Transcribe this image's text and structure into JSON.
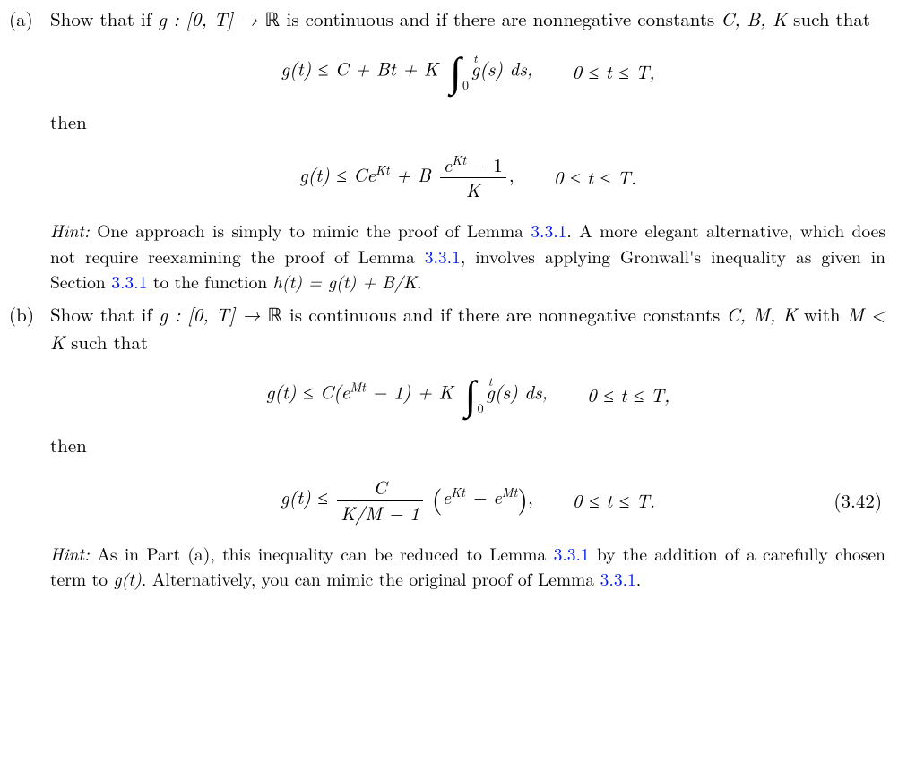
{
  "ref_color": "#0018f3",
  "items": {
    "a": {
      "label": "(a)",
      "lead": "Show that if ",
      "func": "g : [0, T] → ",
      "real": "ℝ",
      "cont": " is continuous and if there are nonnegative constants ",
      "consts": "C, B, K",
      "such": " such that",
      "eq1_lhs": "g(t) ≤ C + Bt + K",
      "eq1_int_hi": "t",
      "eq1_int_lo": "0",
      "eq1_integrand": "g(s) ds,",
      "eq1_range": "0 ≤ t ≤ T,",
      "then": "then",
      "eq2_lhs_a": "g(t) ≤ Ce",
      "eq2_lhs_exp": "Kt",
      "eq2_plusB": " + B",
      "eq2_frac_nu_a": "e",
      "eq2_frac_nu_exp": "Kt",
      "eq2_frac_nu_b": " − 1",
      "eq2_frac_de": "K",
      "eq2_range": "0 ≤ t ≤ T.",
      "hint_lead": "Hint:",
      "hint_text1": "  One approach is simply to mimic the proof of Lemma ",
      "hint_ref1": "3.3.1",
      "hint_text2": ".  A more elegant alternative, which does not require reexamining the proof of Lemma ",
      "hint_ref2": "3.3.1",
      "hint_text3": ", involves applying Gronwall's inequality as given in Section ",
      "hint_ref3": "3.3.1",
      "hint_text4": " to the function ",
      "hint_func": "h(t) = g(t) + B/K",
      "hint_text5": "."
    },
    "b": {
      "label": "(b)",
      "lead": "Show that if ",
      "func": "g : [0, T] → ",
      "real": "ℝ",
      "cont": " is continuous and if there are nonnegative constants ",
      "consts": "C, M, K",
      "with": " with ",
      "cond": "M < K",
      "such": " such that",
      "eq1_lhs_a": "g(t) ≤ C(e",
      "eq1_lhs_exp": "Mt",
      "eq1_lhs_b": " − 1) + K",
      "eq1_int_hi": "t",
      "eq1_int_lo": "0",
      "eq1_integrand": "g(s) ds,",
      "eq1_range": "0 ≤ t ≤ T,",
      "then": "then",
      "eq2_lhs": "g(t) ≤ ",
      "eq2_frac_nu": "C",
      "eq2_frac_de": "K/M − 1",
      "eq2_paren_a": "e",
      "eq2_paren_exp1": "Kt",
      "eq2_paren_mid": " − e",
      "eq2_paren_exp2": "Mt",
      "eq2_range": "0 ≤ t ≤ T.",
      "eq2_number": "(3.42)",
      "hint_lead": "Hint:",
      "hint_text1": " As in Part (a), this inequality can be reduced to Lemma ",
      "hint_ref1": "3.3.1",
      "hint_text2": " by the addition of a carefully chosen term to ",
      "hint_func": "g(t)",
      "hint_text3": ". Alternatively, you can mimic the original proof of Lemma ",
      "hint_ref2": "3.3.1",
      "hint_text4": "."
    }
  }
}
